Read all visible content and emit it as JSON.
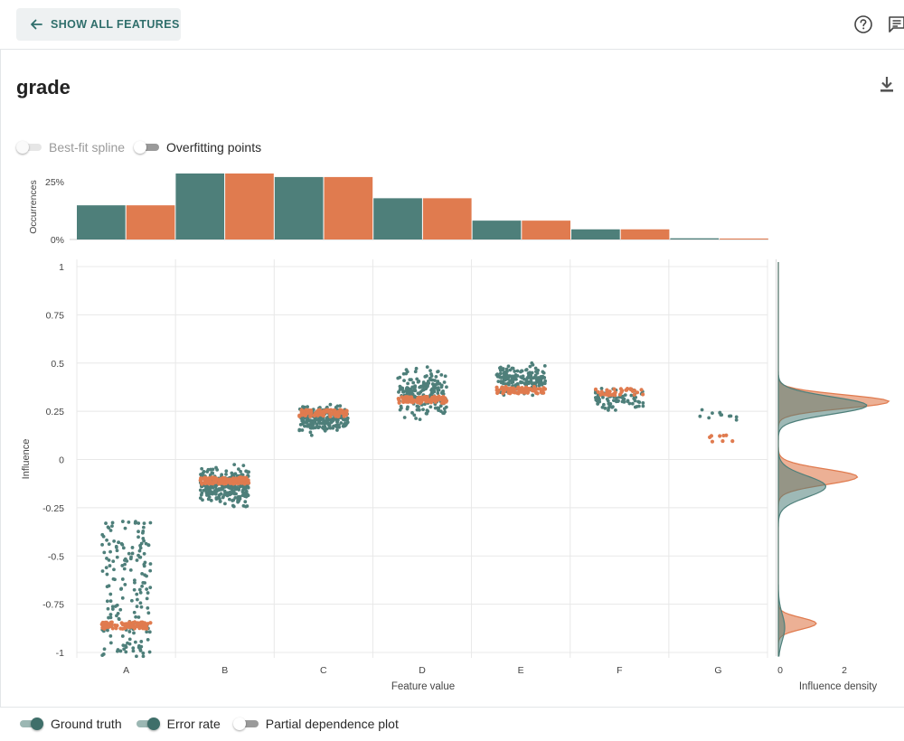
{
  "header": {
    "back_label": "SHOW ALL FEATURES"
  },
  "feature_title": "grade",
  "toggles": {
    "best_fit_spline": "Best-fit spline",
    "overfitting_points": "Overfitting points"
  },
  "legend": {
    "ground_truth": "Ground truth",
    "error_rate": "Error rate",
    "partial_dependence": "Partial dependence plot"
  },
  "colors": {
    "ground_truth": "#4e7f7a",
    "error_rate": "#e07b4f",
    "grid": "#e8e8e8"
  },
  "chart_data": [
    {
      "type": "bar",
      "ylabel": "Occurrences",
      "yticks": [
        "25%",
        "0%"
      ],
      "categories": [
        "A",
        "B",
        "C",
        "D",
        "E",
        "F",
        "G"
      ],
      "series": [
        {
          "name": "Ground truth",
          "values": [
            14.5,
            28,
            26.5,
            17.5,
            8,
            4.3,
            0.5
          ]
        },
        {
          "name": "Error rate",
          "values": [
            14.5,
            28,
            26.5,
            17.5,
            8,
            4.3,
            0.4
          ]
        }
      ],
      "ylim": [
        0,
        28
      ]
    },
    {
      "type": "scatter",
      "xlabel": "Feature value",
      "ylabel": "Influence",
      "categories": [
        "A",
        "B",
        "C",
        "D",
        "E",
        "F",
        "G"
      ],
      "yticks": [
        "1",
        "0.75",
        "0.5",
        "0.25",
        "0",
        "-0.25",
        "-0.5",
        "-0.75",
        "-1"
      ],
      "ylim": [
        -1,
        1
      ],
      "series": [
        {
          "name": "Ground truth",
          "spread": [
            [
              -1.02,
              -0.32
            ],
            [
              -0.28,
              0.0
            ],
            [
              0.11,
              0.31
            ],
            [
              0.19,
              0.5
            ],
            [
              0.32,
              0.51
            ],
            [
              0.24,
              0.39
            ],
            [
              0.16,
              0.29
            ]
          ]
        },
        {
          "name": "Error rate",
          "centers": [
            -0.86,
            -0.11,
            0.24,
            0.31,
            0.36,
            0.35,
            0.11
          ]
        }
      ]
    },
    {
      "type": "area",
      "xlabel": "Influence density",
      "xticks": [
        "0",
        "2"
      ],
      "series": [
        {
          "name": "Ground truth",
          "peaks": [
            [
              0.28,
              2.8
            ],
            [
              -0.14,
              1.5
            ],
            [
              -0.87,
              0.2
            ]
          ]
        },
        {
          "name": "Error rate",
          "peaks": [
            [
              0.3,
              3.5
            ],
            [
              -0.09,
              2.5
            ],
            [
              -0.85,
              1.2
            ]
          ]
        }
      ]
    }
  ]
}
